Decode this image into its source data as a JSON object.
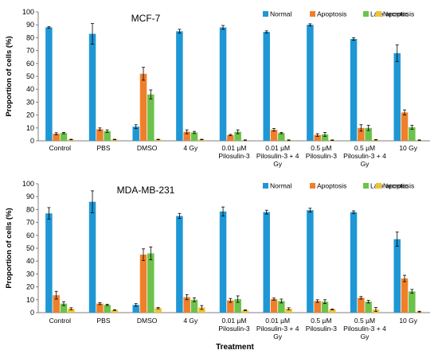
{
  "legend": {
    "entries": [
      {
        "label": "Normal",
        "color": "#1f97d4"
      },
      {
        "label": "Apoptosis",
        "color": "#f07f2a"
      },
      {
        "label": "Late apoptosis",
        "color": "#6cc24a"
      },
      {
        "label": "Necrotic",
        "color": "#f2c230"
      }
    ]
  },
  "x_axis_title": "Treatment",
  "chart_data": [
    {
      "type": "bar",
      "title": "MCF-7",
      "ylabel": "Proportion of cells (%)",
      "xlabel": "",
      "ylim": [
        0,
        100
      ],
      "yticks": [
        0,
        10,
        20,
        30,
        40,
        50,
        60,
        70,
        80,
        90,
        100
      ],
      "grid": false,
      "legend_position": "top-right",
      "categories": [
        [
          "Control"
        ],
        [
          "PBS"
        ],
        [
          "DMSO"
        ],
        [
          "4 Gy"
        ],
        [
          "0.01 µM",
          "Pilosulin-3"
        ],
        [
          "0.01 µM",
          "Pilosulin-3 + 4",
          "Gy"
        ],
        [
          "0.5 µM",
          "Pilosulin-3"
        ],
        [
          "0.5 µM",
          "Pilosulin-3 + 4",
          "Gy"
        ],
        [
          "10 Gy"
        ]
      ],
      "series": [
        {
          "name": "Normal",
          "color": "#1f97d4",
          "values": [
            88,
            83,
            11,
            85,
            88,
            84.5,
            90,
            79,
            68
          ],
          "errors": [
            0.5,
            8,
            1.5,
            1.5,
            1.5,
            0.8,
            0.8,
            1,
            6.5
          ]
        },
        {
          "name": "Apoptosis",
          "color": "#f07f2a",
          "values": [
            5.5,
            9,
            52,
            7,
            4.5,
            8.5,
            4.5,
            10,
            22
          ],
          "errors": [
            0.8,
            1,
            5,
            1.5,
            0.5,
            1,
            1,
            2.5,
            2
          ]
        },
        {
          "name": "Late apoptosis",
          "color": "#6cc24a",
          "values": [
            6,
            7.5,
            36,
            6.5,
            7,
            6,
            5,
            10,
            10.5
          ],
          "errors": [
            0.5,
            1,
            3.5,
            0.8,
            1.5,
            0.5,
            1.5,
            2,
            1.5
          ]
        },
        {
          "name": "Necrotic",
          "color": "#f2c230",
          "values": [
            1,
            1,
            1,
            1,
            0.5,
            0.5,
            0.5,
            0.8,
            0.5
          ],
          "errors": [
            0.2,
            0.2,
            0.2,
            0.2,
            0.2,
            0.2,
            0.2,
            0.2,
            0.2
          ]
        }
      ]
    },
    {
      "type": "bar",
      "title": "MDA-MB-231",
      "ylabel": "Proportion of cells (%)",
      "xlabel": "Treatment",
      "ylim": [
        0,
        100
      ],
      "yticks": [
        0,
        10,
        20,
        30,
        40,
        50,
        60,
        70,
        80,
        90,
        100
      ],
      "grid": false,
      "legend_position": "top-right",
      "categories": [
        [
          "Control"
        ],
        [
          "PBS"
        ],
        [
          "DMSO"
        ],
        [
          "4 Gy"
        ],
        [
          "0.01 µM",
          "Pilosulin-3"
        ],
        [
          "0.01 µM",
          "Pilosulin-3 + 4",
          "Gy"
        ],
        [
          "0.5 µM",
          "Pilosulin-3"
        ],
        [
          "0.5 µM",
          "Pilosulin-3 + 4",
          "Gy"
        ],
        [
          "10 Gy"
        ]
      ],
      "series": [
        {
          "name": "Normal",
          "color": "#1f97d4",
          "values": [
            77,
            86,
            6,
            75,
            78.5,
            78,
            79.5,
            78,
            57
          ],
          "errors": [
            4.5,
            8.5,
            1,
            2,
            3.5,
            1.5,
            1.5,
            1,
            5.5
          ]
        },
        {
          "name": "Apoptosis",
          "color": "#f07f2a",
          "values": [
            13.5,
            7,
            45,
            12,
            9.5,
            10.5,
            9,
            11.5,
            26.5
          ],
          "errors": [
            3,
            0.8,
            4.5,
            2,
            1.5,
            0.8,
            1,
            1,
            2.5
          ]
        },
        {
          "name": "Late apoptosis",
          "color": "#6cc24a",
          "values": [
            7,
            6,
            46,
            10,
            10.5,
            9,
            8.5,
            8.5,
            16.5
          ],
          "errors": [
            1.5,
            0.5,
            5,
            1.5,
            2.5,
            1.5,
            1.5,
            1,
            1.5
          ]
        },
        {
          "name": "Necrotic",
          "color": "#f2c230",
          "values": [
            3,
            2,
            3.5,
            4,
            1.8,
            3,
            2.5,
            2.5,
            0.8
          ],
          "errors": [
            0.8,
            0.3,
            0.5,
            1.5,
            0.3,
            0.8,
            0.3,
            1.5,
            0.3
          ]
        }
      ]
    }
  ]
}
